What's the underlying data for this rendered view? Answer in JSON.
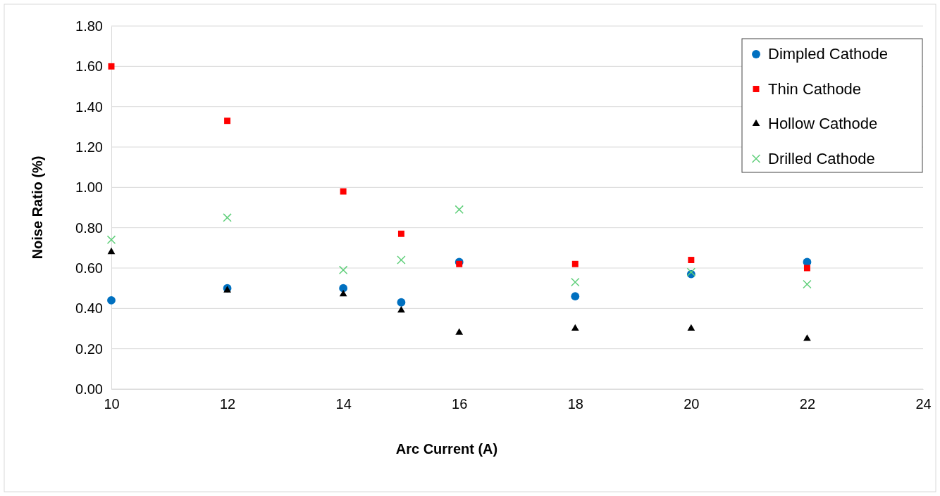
{
  "chart_data": {
    "type": "scatter",
    "xlabel": "Arc Current (A)",
    "ylabel": "Noise Ratio (%)",
    "xlim": [
      10,
      24
    ],
    "xticks": [
      10,
      12,
      14,
      16,
      18,
      20,
      22,
      24
    ],
    "ylim": [
      0,
      1.8
    ],
    "yticks": [
      {
        "value": 0,
        "label": "0.00"
      },
      {
        "value": 0.2,
        "label": "0.20"
      },
      {
        "value": 0.4,
        "label": "0.40"
      },
      {
        "value": 0.6,
        "label": "0.60"
      },
      {
        "value": 0.8,
        "label": "0.80"
      },
      {
        "value": 1,
        "label": "1.00"
      },
      {
        "value": 1.2,
        "label": "1.20"
      },
      {
        "value": 1.4,
        "label": "1.40"
      },
      {
        "value": 1.6,
        "label": "1.60"
      },
      {
        "value": 1.8,
        "label": "1.80"
      }
    ],
    "grid": "y",
    "legend": "top right",
    "x": [
      10,
      12,
      14,
      15,
      16,
      18,
      20,
      22
    ],
    "series": [
      {
        "name": "Dimpled Cathode",
        "color": "#0070c0",
        "marker": "circle",
        "values": [
          0.44,
          0.5,
          0.5,
          0.43,
          0.63,
          0.46,
          0.57,
          0.63
        ]
      },
      {
        "name": "Thin Cathode",
        "color": "#ff0000",
        "marker": "square",
        "values": [
          1.6,
          1.33,
          0.98,
          0.77,
          0.62,
          0.62,
          0.64,
          0.6
        ]
      },
      {
        "name": "Hollow Cathode",
        "color": "#000000",
        "marker": "triangle",
        "values": [
          0.68,
          0.49,
          0.47,
          0.39,
          0.28,
          0.3,
          0.3,
          0.25
        ]
      },
      {
        "name": "Drilled Cathode",
        "color": "#5fcf7a",
        "marker": "cross",
        "values": [
          0.74,
          0.85,
          0.59,
          0.64,
          0.89,
          0.53,
          0.58,
          0.52
        ]
      }
    ]
  }
}
